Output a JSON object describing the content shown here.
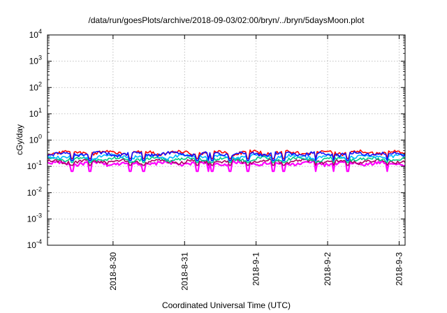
{
  "chart_data": {
    "type": "line",
    "title": "/data/run/goesPlots/archive/2018-09-03/02:00/bryn/../bryn/5daysMoon.plot",
    "xlabel": "Coordinated Universal Time (UTC)",
    "ylabel": "cGy/day",
    "yscale": "log",
    "grid": true,
    "ylim": [
      0.0001,
      10000
    ],
    "xlim_days": [
      "2018-08-29 02:00",
      "2018-09-03 02:00"
    ],
    "yticks": [
      {
        "value": 10000,
        "base": "10",
        "exp": "4"
      },
      {
        "value": 1000,
        "base": "10",
        "exp": "3"
      },
      {
        "value": 100,
        "base": "10",
        "exp": "2"
      },
      {
        "value": 10,
        "base": "10",
        "exp": "1"
      },
      {
        "value": 1,
        "base": "10",
        "exp": "0"
      },
      {
        "value": 0.1,
        "base": "10",
        "exp": "-1"
      },
      {
        "value": 0.01,
        "base": "10",
        "exp": "-2"
      },
      {
        "value": 0.001,
        "base": "10",
        "exp": "-3"
      },
      {
        "value": 0.0001,
        "base": "10",
        "exp": "-4"
      }
    ],
    "xticks": [
      {
        "label": "2018-8-30",
        "date": "2018-08-30 00:00"
      },
      {
        "label": "2018-8-31",
        "date": "2018-08-31 00:00"
      },
      {
        "label": "2018-9-1",
        "date": "2018-09-01 00:00"
      },
      {
        "label": "2018-9-2",
        "date": "2018-09-02 00:00"
      },
      {
        "label": "2018-9-3",
        "date": "2018-09-03 00:00"
      }
    ],
    "series": [
      {
        "color": "#ff00ff",
        "base": 0.13,
        "dips": 0.065
      },
      {
        "color": "#aa0060",
        "base": 0.155,
        "dips": 0.11
      },
      {
        "color": "#00cc88",
        "base": 0.19,
        "dips": 0.14
      },
      {
        "color": "#00b8ff",
        "base": 0.24,
        "dips": 0.16
      },
      {
        "color": "#ff0000",
        "base": 0.335,
        "dips": 0.2
      },
      {
        "color": "#1010ff",
        "base": 0.3,
        "dips": 0.17
      }
    ]
  }
}
